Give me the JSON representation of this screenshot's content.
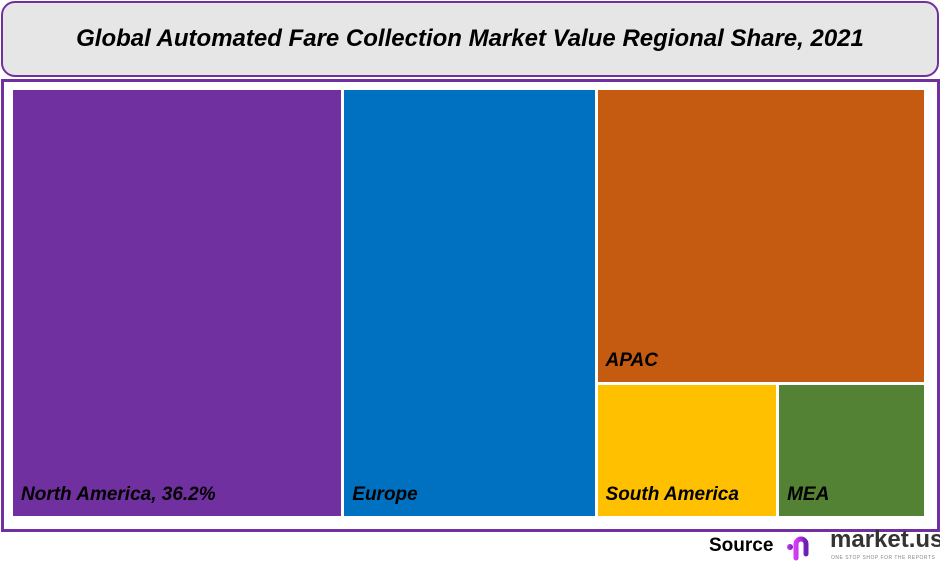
{
  "chart_data": {
    "type": "treemap",
    "title": "Global Automated Fare Collection Market Value Regional Share, 2021",
    "series": [
      {
        "name": "North America",
        "value": 36.2,
        "label": "North America, 36.2%",
        "color": "#7030a0"
      },
      {
        "name": "Europe",
        "value": 27.8,
        "label": "Europe",
        "color": "#0070c0"
      },
      {
        "name": "APAC",
        "value": 24.8,
        "label": "APAC",
        "color": "#c55a11"
      },
      {
        "name": "South America",
        "value": 6.2,
        "label": "South America",
        "color": "#ffc000"
      },
      {
        "name": "MEA",
        "value": 5.0,
        "label": "MEA",
        "color": "#548235"
      }
    ],
    "unit": "%"
  },
  "footer": {
    "source_label": "Source",
    "logo_text": "market.us",
    "logo_tagline": "ONE STOP SHOP FOR THE REPORTS"
  },
  "colors": {
    "frame": "#7030a0",
    "title_bg": "#e7e6e6"
  }
}
